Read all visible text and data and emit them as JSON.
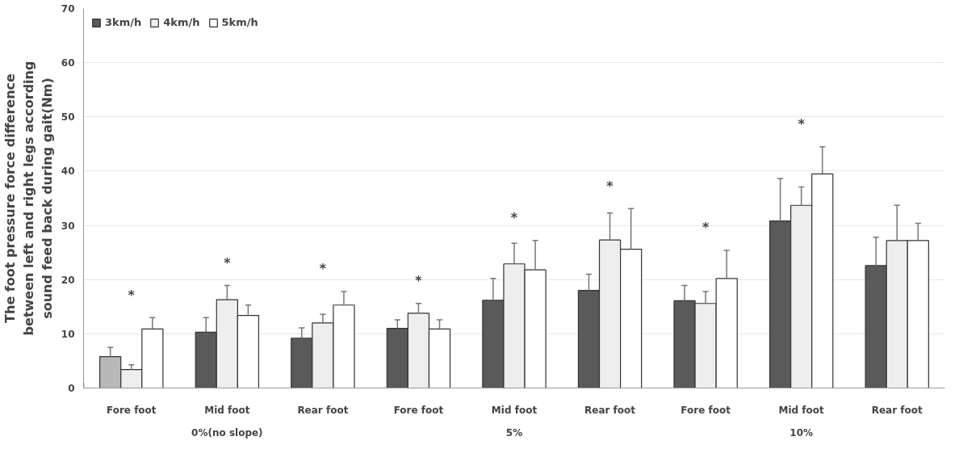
{
  "chart_data": {
    "type": "bar",
    "ylabel": "The foot pressure force difference\nbetween left and right legs according\nsound feed back during gait(Nm)",
    "categories": [
      "Fore foot",
      "Mid foot",
      "Rear foot",
      "Fore foot",
      "Mid foot",
      "Rear foot",
      "Fore foot",
      "Mid foot",
      "Rear foot"
    ],
    "series": [
      {
        "name": "3km/h",
        "color": "#5a5a5a",
        "colors": [
          "#b8b8b8",
          "#5a5a5a",
          "#5a5a5a",
          "#5a5a5a",
          "#5a5a5a",
          "#5a5a5a",
          "#5a5a5a",
          "#5a5a5a",
          "#5a5a5a"
        ],
        "values": [
          5.8,
          10.3,
          9.2,
          11.0,
          16.2,
          18.0,
          16.1,
          30.8,
          22.6
        ],
        "errors": [
          [
            5.8,
            7.5
          ],
          [
            10.3,
            13.0
          ],
          [
            9.2,
            11.1
          ],
          [
            11.0,
            12.6
          ],
          [
            16.2,
            20.2
          ],
          [
            18.0,
            21.0
          ],
          [
            16.1,
            18.9
          ],
          [
            30.8,
            38.6
          ],
          [
            22.6,
            27.8
          ]
        ]
      },
      {
        "name": "4km/h",
        "color": "#eeeeee",
        "values": [
          3.4,
          16.3,
          12.0,
          13.8,
          22.9,
          27.3,
          15.6,
          33.7,
          27.2
        ],
        "errors": [
          [
            3.4,
            4.3
          ],
          [
            16.3,
            18.9
          ],
          [
            12.0,
            13.6
          ],
          [
            13.8,
            15.6
          ],
          [
            22.9,
            26.7
          ],
          [
            27.3,
            32.3
          ],
          [
            15.6,
            17.8
          ],
          [
            33.7,
            37.1
          ],
          [
            27.2,
            33.7
          ]
        ]
      },
      {
        "name": "5km/h",
        "color": "#ffffff",
        "values": [
          10.9,
          13.4,
          15.3,
          10.9,
          21.8,
          25.6,
          20.2,
          39.5,
          27.2
        ],
        "errors": [
          [
            10.9,
            13.0
          ],
          [
            13.4,
            15.3
          ],
          [
            15.3,
            17.8
          ],
          [
            10.9,
            12.6
          ],
          [
            21.8,
            27.2
          ],
          [
            25.6,
            33.1
          ],
          [
            20.2,
            25.4
          ],
          [
            39.5,
            44.5
          ],
          [
            27.2,
            30.4
          ]
        ]
      }
    ],
    "ylim": [
      0,
      70
    ],
    "yticks": [
      0,
      10,
      20,
      30,
      40,
      50,
      60,
      70
    ],
    "grid": "y",
    "legend": "top left",
    "annotations": [
      "0%(no slope)",
      "5%",
      "10%",
      "*",
      "*",
      "*",
      "*",
      "*",
      "*",
      "*",
      "*"
    ]
  }
}
